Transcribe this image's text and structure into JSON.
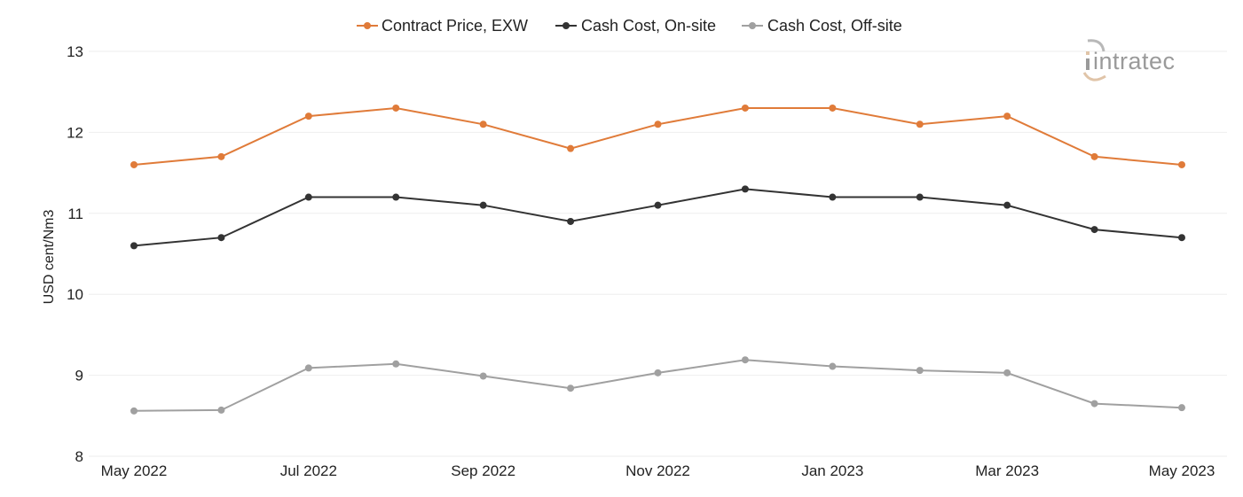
{
  "logo": {
    "text": "intratec"
  },
  "chart_data": {
    "type": "line",
    "ylabel": "USD cent/Nm3",
    "xlabel": "",
    "ylim": [
      8,
      13
    ],
    "yticks": [
      "13",
      "12",
      "11",
      "10",
      "9",
      "8"
    ],
    "x": [
      "May 2022",
      "Jun 2022",
      "Jul 2022",
      "Aug 2022",
      "Sep 2022",
      "Oct 2022",
      "Nov 2022",
      "Dec 2022",
      "Jan 2023",
      "Feb 2023",
      "Mar 2023",
      "Apr 2023",
      "May 2023"
    ],
    "xtick_labels": [
      "May 2022",
      "",
      "Jul 2022",
      "",
      "Sep 2022",
      "",
      "Nov 2022",
      "",
      "Jan 2023",
      "",
      "Mar 2023",
      "",
      "May 2023"
    ],
    "legend_position": "top-center",
    "grid": true,
    "series": [
      {
        "name": "Contract Price, EXW",
        "color": "#e07b39",
        "values": [
          11.6,
          11.7,
          12.2,
          12.3,
          12.1,
          11.8,
          12.1,
          12.3,
          12.3,
          12.1,
          12.2,
          11.7,
          11.6
        ]
      },
      {
        "name": "Cash Cost, On-site",
        "color": "#333333",
        "values": [
          10.6,
          10.7,
          11.2,
          11.2,
          11.1,
          10.9,
          11.1,
          11.3,
          11.2,
          11.2,
          11.1,
          10.8,
          10.7
        ]
      },
      {
        "name": "Cash Cost, Off-site",
        "color": "#a0a0a0",
        "values": [
          8.56,
          8.57,
          9.09,
          9.14,
          8.99,
          8.84,
          9.03,
          9.19,
          9.11,
          9.06,
          9.03,
          8.65,
          8.6
        ]
      }
    ]
  }
}
